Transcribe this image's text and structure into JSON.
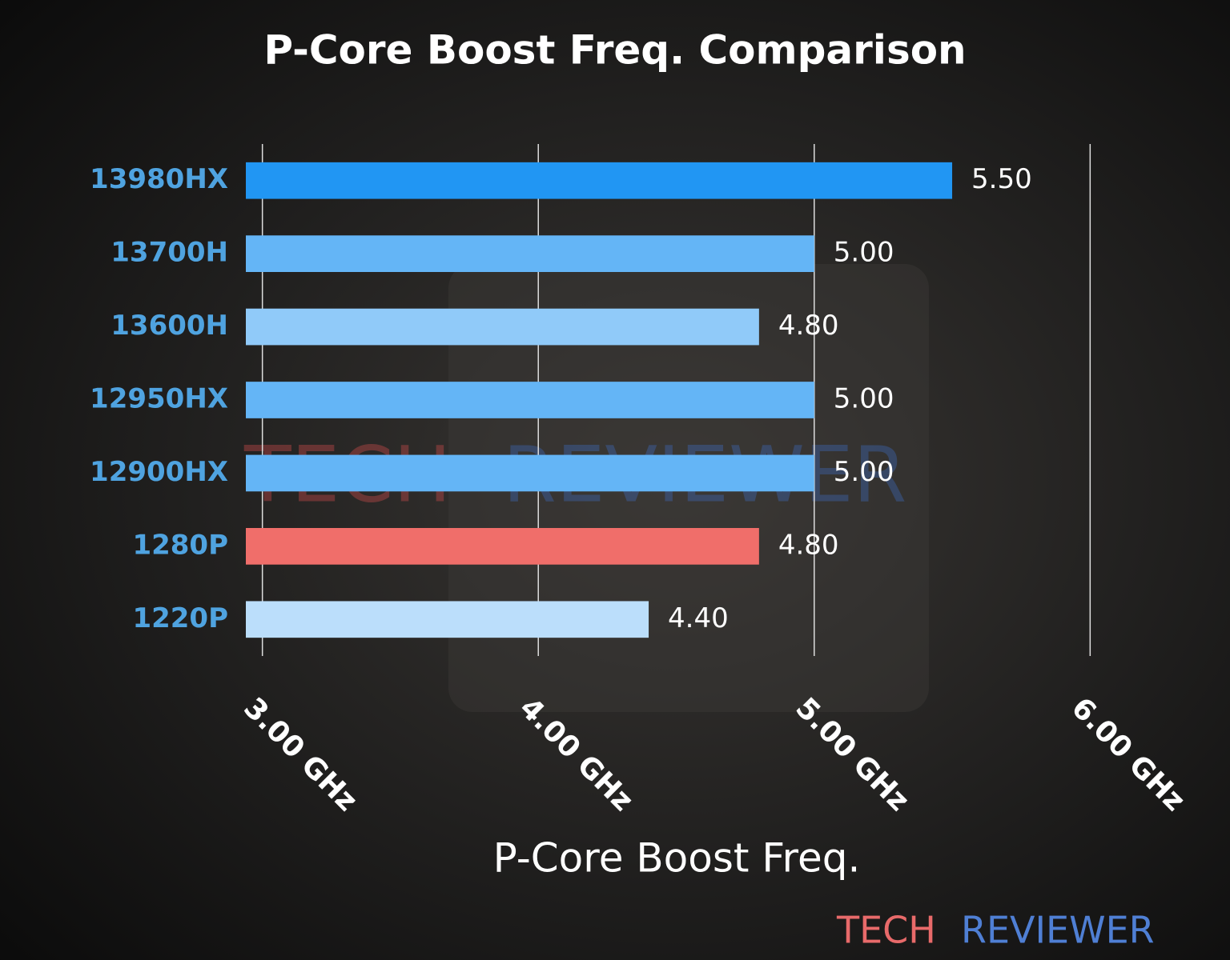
{
  "chart_data": {
    "type": "bar",
    "orientation": "horizontal",
    "title": "P-Core Boost Freq. Comparison",
    "x_label": "P-Core Boost Freq.",
    "categories": [
      "13980HX",
      "13700H",
      "13600H",
      "12950HX",
      "12900HX",
      "1280P",
      "1220P"
    ],
    "values": [
      5.5,
      5.0,
      4.8,
      5.0,
      5.0,
      4.8,
      4.4
    ],
    "value_labels": [
      "5.50",
      "5.00",
      "4.80",
      "5.00",
      "5.00",
      "4.80",
      "4.40"
    ],
    "colors": [
      "#2196f3",
      "#64b5f6",
      "#90caf9",
      "#64b5f6",
      "#64b5f6",
      "#f06e6a",
      "#bbdefb"
    ],
    "xlim": [
      2.94,
      6.06
    ],
    "xticks": [
      {
        "value": 3,
        "label": "3.00 GHz"
      },
      {
        "value": 4,
        "label": "4.00 GHz"
      },
      {
        "value": 5,
        "label": "5.00 GHz"
      },
      {
        "value": 6,
        "label": "6.00 GHz"
      }
    ],
    "grid": true,
    "watermark": [
      "TECH",
      "REVIEWER"
    ]
  }
}
